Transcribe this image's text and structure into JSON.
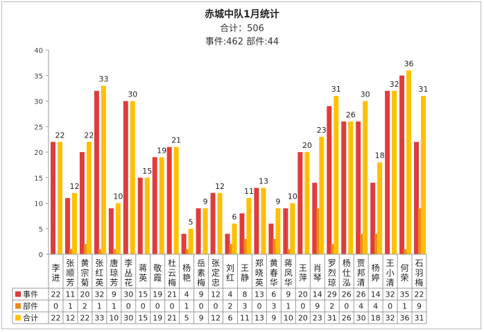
{
  "title": "赤城中队1月统计",
  "subtitle_total": "合计：506",
  "subtitle_breakdown": "事件:462 部件:44",
  "chart_data": {
    "type": "bar",
    "ylim": [
      0,
      40
    ],
    "yticks": [
      0,
      5,
      10,
      15,
      20,
      25,
      30,
      35,
      40
    ],
    "grid": false,
    "legend": "data-table",
    "categories": [
      "李进",
      "张顺芳",
      "黄宗菊",
      "张红英",
      "唐琼芳",
      "李丛花",
      "蒋英",
      "敬霞",
      "杜云梅",
      "杨艳",
      "岳素梅",
      "张定忠",
      "刘红",
      "王静",
      "郑晓英",
      "黄春华",
      "蒋凤华",
      "王萍",
      "肖琴",
      "罗烈琼",
      "杨仕泓",
      "贾邦清",
      "杨婷",
      "王小清",
      "何荣",
      "石羽梅"
    ],
    "series": [
      {
        "name": "事件",
        "color": "#e03c3c",
        "values": [
          22,
          11,
          20,
          32,
          9,
          30,
          15,
          19,
          21,
          4,
          9,
          12,
          4,
          8,
          13,
          6,
          9,
          20,
          14,
          29,
          26,
          26,
          14,
          32,
          35,
          22
        ]
      },
      {
        "name": "部件",
        "color": "#f08a1c",
        "values": [
          0,
          1,
          2,
          1,
          1,
          0,
          0,
          0,
          0,
          1,
          0,
          0,
          2,
          3,
          0,
          3,
          1,
          0,
          9,
          2,
          0,
          4,
          4,
          0,
          1,
          9
        ]
      },
      {
        "name": "合计",
        "color": "#ffc000",
        "values": [
          22,
          12,
          22,
          33,
          10,
          30,
          15,
          19,
          21,
          5,
          9,
          12,
          6,
          11,
          13,
          9,
          10,
          20,
          23,
          31,
          26,
          30,
          18,
          32,
          36,
          31
        ]
      }
    ]
  }
}
